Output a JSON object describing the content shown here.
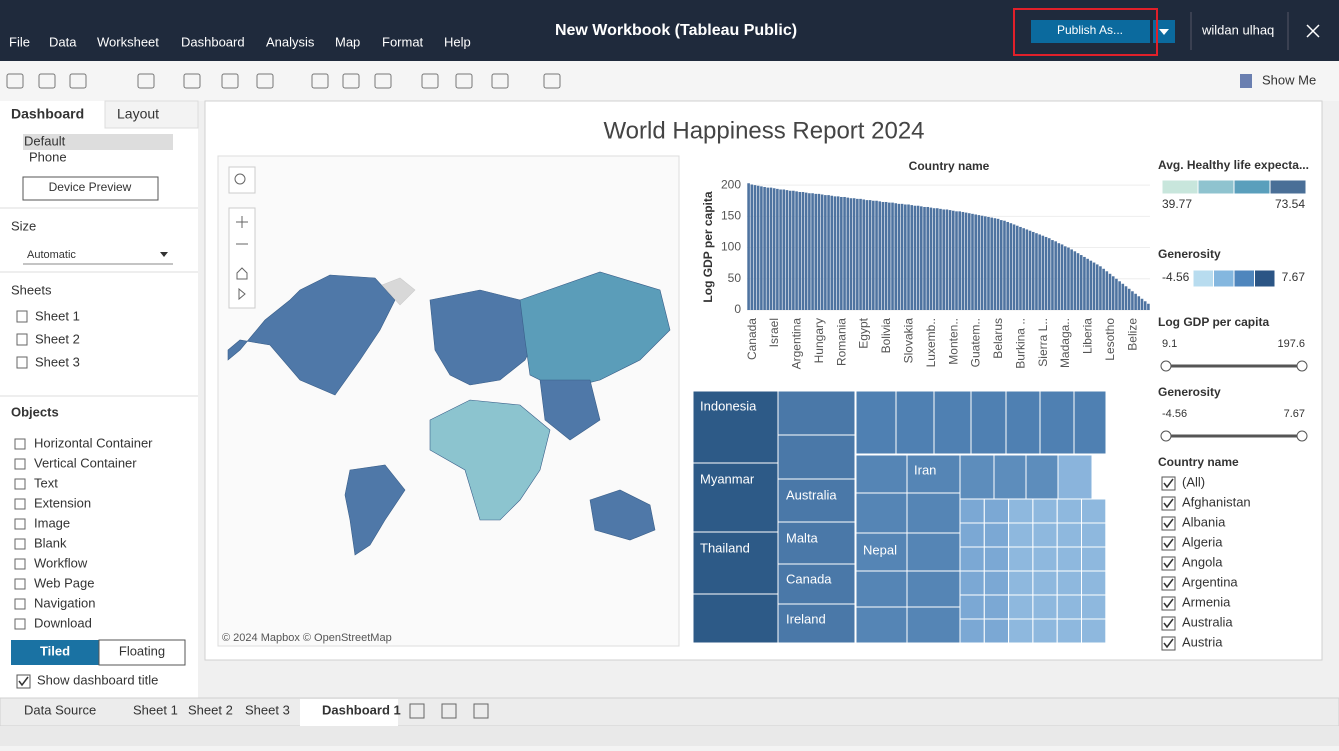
{
  "window": {
    "menu": [
      "File",
      "Data",
      "Worksheet",
      "Dashboard",
      "Analysis",
      "Map",
      "Format",
      "Help"
    ],
    "title": "New Workbook (Tableau Public)",
    "publish_button": "Publish As...",
    "user": "wildan ulhaq",
    "show_me": "Show Me"
  },
  "side_panel": {
    "tabs": [
      "Dashboard",
      "Layout"
    ],
    "device_options": [
      "Default",
      "Phone"
    ],
    "device_preview": "Device Preview",
    "size_heading": "Size",
    "size_value": "Automatic",
    "sheets_heading": "Sheets",
    "sheets": [
      "Sheet 1",
      "Sheet 2",
      "Sheet 3"
    ],
    "objects_heading": "Objects",
    "objects": [
      "Horizontal Container",
      "Vertical Container",
      "Text",
      "Extension",
      "Image",
      "Blank",
      "Workflow",
      "Web Page",
      "Navigation",
      "Download"
    ],
    "layout_modes": [
      "Tiled",
      "Floating"
    ],
    "show_title": "Show dashboard title"
  },
  "dashboard": {
    "title": "World Happiness Report 2024",
    "map_credit": "© 2024 Mapbox © OpenStreetMap",
    "treemap_labels": [
      "Indonesia",
      "Myanmar",
      "Thailand",
      "Australia",
      "Malta",
      "Canada",
      "Ireland",
      "Nepal",
      "Iran"
    ],
    "legend_life": {
      "title": "Avg. Healthy life expecta...",
      "min": 39.77,
      "max": 73.54
    },
    "legend_generosity": {
      "title": "Generosity",
      "min": -4.56,
      "max": 7.67
    },
    "filter_gdp": {
      "title": "Log GDP per capita",
      "min": 9.1,
      "max": 197.6
    },
    "filter_generosity": {
      "title": "Generosity",
      "min": -4.56,
      "max": 7.67
    },
    "filter_country": {
      "title": "Country name",
      "items": [
        "(All)",
        "Afghanistan",
        "Albania",
        "Algeria",
        "Angola",
        "Argentina",
        "Armenia",
        "Australia",
        "Austria"
      ]
    }
  },
  "chart_data": {
    "type": "bar",
    "title": "Country name",
    "y_label": "Log GDP per capita",
    "color": "#4e73a0",
    "ylim": [
      0,
      205
    ],
    "yticks": [
      0,
      50,
      100,
      150,
      200
    ],
    "grid": true,
    "categories": [
      "Canada",
      null,
      null,
      null,
      null,
      null,
      null,
      "Israel",
      null,
      null,
      null,
      null,
      null,
      null,
      "Argentina",
      null,
      null,
      null,
      null,
      null,
      null,
      "Hungary",
      null,
      null,
      null,
      null,
      null,
      null,
      "Romania",
      null,
      null,
      null,
      null,
      null,
      null,
      "Egypt",
      null,
      null,
      null,
      null,
      null,
      null,
      "Bolivia",
      null,
      null,
      null,
      null,
      null,
      null,
      "Slovakia",
      null,
      null,
      null,
      null,
      null,
      null,
      "Luxemb..",
      null,
      null,
      null,
      null,
      null,
      null,
      "Monten..",
      null,
      null,
      null,
      null,
      null,
      null,
      "Guatem..",
      null,
      null,
      null,
      null,
      null,
      null,
      "Belarus",
      null,
      null,
      null,
      null,
      null,
      null,
      "Burkina ..",
      null,
      null,
      null,
      null,
      null,
      null,
      "Sierra L..",
      null,
      null,
      null,
      null,
      null,
      null,
      "Madaga..",
      null,
      null,
      null,
      null,
      null,
      null,
      "Liberia",
      null,
      null,
      null,
      null,
      null,
      null,
      "Lesotho",
      null,
      null,
      null,
      null,
      null,
      null,
      "Belize",
      null,
      null,
      null,
      null,
      null,
      null
    ],
    "values": [
      203,
      201,
      200,
      199,
      198,
      197,
      196,
      196,
      195,
      194,
      193,
      193,
      192,
      191,
      191,
      190,
      189,
      189,
      188,
      187,
      187,
      186,
      186,
      185,
      184,
      184,
      183,
      182,
      182,
      181,
      181,
      180,
      179,
      179,
      178,
      178,
      177,
      176,
      176,
      175,
      175,
      174,
      173,
      173,
      172,
      172,
      171,
      170,
      170,
      169,
      169,
      168,
      167,
      167,
      166,
      165,
      165,
      164,
      163,
      163,
      162,
      161,
      161,
      160,
      159,
      158,
      158,
      157,
      156,
      155,
      154,
      153,
      152,
      151,
      150,
      149,
      148,
      147,
      146,
      144,
      143,
      141,
      139,
      137,
      135,
      133,
      131,
      129,
      127,
      125,
      123,
      121,
      119,
      117,
      115,
      112,
      110,
      107,
      105,
      102,
      100,
      97,
      94,
      91,
      88,
      85,
      82,
      79,
      76,
      73,
      70,
      66,
      62,
      58,
      54,
      50,
      46,
      42,
      38,
      34,
      30,
      26,
      22,
      18,
      14,
      10
    ]
  },
  "bottom_tabs": [
    "Data Source",
    "Sheet 1",
    "Sheet 2",
    "Sheet 3",
    "Dashboard 1"
  ]
}
